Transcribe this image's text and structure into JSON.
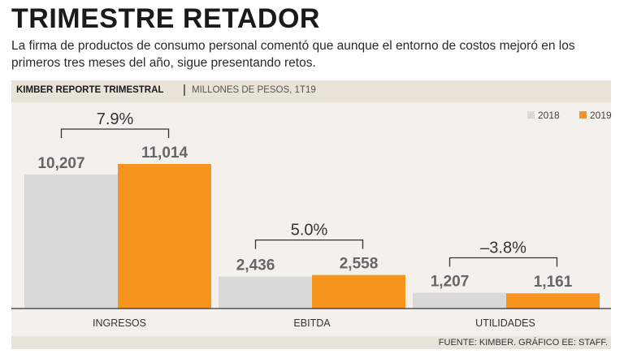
{
  "header": {
    "title": "TRIMESTRE RETADOR",
    "subtitle": "La firma de productos de consumo personal comentó que aunque el entorno de costos mejoró en los primeros tres meses del año, sigue presentando retos."
  },
  "band": {
    "report": "KIMBER REPORTE TRIMESTRAL",
    "separator": "|",
    "units": "MILLONES DE PESOS, 1T19"
  },
  "footer": {
    "source": "FUENTE: KIMBER. GRÁFICO EE: STAFF."
  },
  "chart_data": {
    "type": "bar",
    "title": "KIMBER REPORTE TRIMESTRAL",
    "ylabel": "MILLONES DE PESOS, 1T19",
    "categories": [
      "INGRESOS",
      "EBITDA",
      "UTILIDADES"
    ],
    "series": [
      {
        "name": "2018",
        "color": "#d9d9d9",
        "values": [
          10207,
          2436,
          1207
        ],
        "labels": [
          "10,207",
          "2,436",
          "1,207"
        ]
      },
      {
        "name": "2019",
        "color": "#f7941d",
        "values": [
          11014,
          2558,
          1161
        ],
        "labels": [
          "11,014",
          "2,558",
          "1,161"
        ]
      }
    ],
    "changes": [
      "7.9%",
      "5.0%",
      "–3.8%"
    ],
    "ylim": [
      0,
      11014
    ],
    "legend": "top-right"
  }
}
